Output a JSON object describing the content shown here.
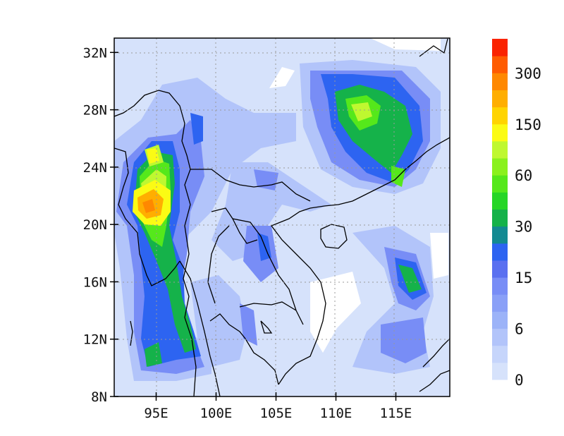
{
  "map": {
    "y_ticks": [
      {
        "lat": 32,
        "label": "32N"
      },
      {
        "lat": 28,
        "label": "28N"
      },
      {
        "lat": 24,
        "label": "24N"
      },
      {
        "lat": 20,
        "label": "20N"
      },
      {
        "lat": 16,
        "label": "16N"
      },
      {
        "lat": 12,
        "label": "12N"
      },
      {
        "lat": 8,
        "label": "8N"
      }
    ],
    "x_ticks": [
      {
        "lon": 95,
        "label": "95E"
      },
      {
        "lon": 100,
        "label": "100E"
      },
      {
        "lon": 105,
        "label": "105E"
      },
      {
        "lon": 110,
        "label": "110E"
      },
      {
        "lon": 115,
        "label": "115E"
      }
    ],
    "extent": {
      "lon_min": 91.5,
      "lon_max": 119.5,
      "lat_min": 8,
      "lat_max": 33
    },
    "grid": "dotted"
  },
  "colorbar": {
    "colors": [
      "#d6e2fb",
      "#c6d5fb",
      "#b2c4fa",
      "#9cb3f8",
      "#8aa0f7",
      "#788df6",
      "#5a70f0",
      "#2d64f1",
      "#138a92",
      "#15b24a",
      "#26d626",
      "#55e81b",
      "#8af11d",
      "#bff830",
      "#fbfb14",
      "#ffd400",
      "#ffae00",
      "#ff8800",
      "#ff5b00",
      "#fa2300"
    ],
    "labels": [
      "0",
      "6",
      "15",
      "30",
      "60",
      "150",
      "300"
    ]
  }
}
